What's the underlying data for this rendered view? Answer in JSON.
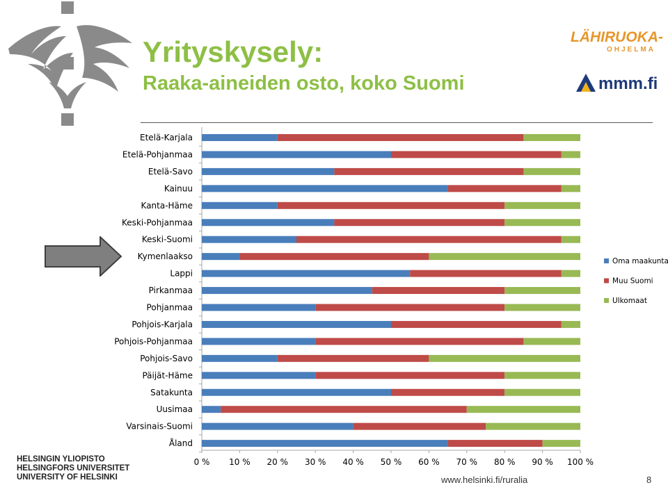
{
  "header": {
    "title": "Yrityskysely:",
    "subtitle": "Raaka-aineiden osto, koko Suomi"
  },
  "logos": {
    "lahiruoka_line1": "LÄHIRUOKA-",
    "lahiruoka_line2": "OHJELMA",
    "mmm": "mmm.fi"
  },
  "footer": {
    "university_lines": [
      "HELSINGIN YLIOPISTO",
      "HELSINGFORS UNIVERSITET",
      "UNIVERSITY OF HELSINKI"
    ],
    "url": "www.helsinki.fi/ruralia",
    "page": "8"
  },
  "colors": {
    "oma": "#4a7ebb",
    "muu": "#be4b48",
    "ulko": "#98b954",
    "title": "#8dbf45"
  },
  "chart_data": {
    "type": "bar",
    "orientation": "horizontal",
    "stacked": "percent",
    "categories": [
      "Etelä-Karjala",
      "Etelä-Pohjanmaa",
      "Etelä-Savo",
      "Kainuu",
      "Kanta-Häme",
      "Keski-Pohjanmaa",
      "Keski-Suomi",
      "Kymenlaakso",
      "Lappi",
      "Pirkanmaa",
      "Pohjanmaa",
      "Pohjois-Karjala",
      "Pohjois-Pohjanmaa",
      "Pohjois-Savo",
      "Päijät-Häme",
      "Satakunta",
      "Uusimaa",
      "Varsinais-Suomi",
      "Åland"
    ],
    "series": [
      {
        "name": "Oma maakunta",
        "values": [
          20,
          50,
          35,
          65,
          20,
          35,
          25,
          10,
          55,
          45,
          30,
          50,
          30,
          20,
          30,
          50,
          5,
          40,
          65
        ]
      },
      {
        "name": "Muu Suomi",
        "values": [
          65,
          45,
          50,
          30,
          60,
          45,
          70,
          50,
          40,
          35,
          50,
          45,
          55,
          40,
          50,
          30,
          65,
          35,
          25
        ]
      },
      {
        "name": "Ulkomaat",
        "values": [
          15,
          5,
          15,
          5,
          20,
          20,
          5,
          40,
          5,
          20,
          20,
          5,
          15,
          40,
          20,
          20,
          30,
          25,
          10
        ]
      }
    ],
    "xlim": [
      0,
      100
    ],
    "xticks": [
      "0 %",
      "10 %",
      "20 %",
      "30 %",
      "40 %",
      "50 %",
      "60 %",
      "70 %",
      "80 %",
      "90 %",
      "100 %"
    ],
    "legend_position": "right",
    "grid": false,
    "annotation": "arrow pointing at Kymenlaakso"
  }
}
